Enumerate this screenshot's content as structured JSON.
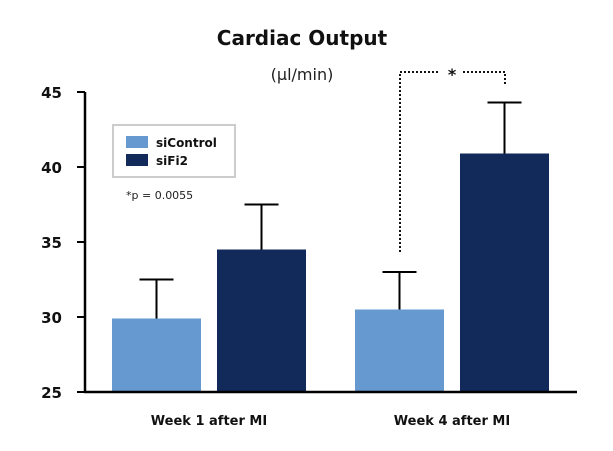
{
  "chart_data": {
    "type": "bar",
    "title": "Cardiac Output",
    "subtitle": "(μl/min)",
    "xlabel": "",
    "ylabel": "",
    "ylim": [
      25,
      45
    ],
    "yticks": [
      "25",
      "30",
      "35",
      "40",
      "45"
    ],
    "grid": false,
    "categories": [
      "Week 1 after MI",
      "Week 4 after MI"
    ],
    "series": [
      {
        "name": "siControl",
        "color": "#6699d0",
        "values": [
          29.9,
          30.5
        ],
        "error_upper": [
          32.5,
          33.0
        ]
      },
      {
        "name": "siFi2",
        "color": "#112a5a",
        "values": [
          34.5,
          40.9
        ],
        "error_upper": [
          37.5,
          44.3
        ]
      }
    ],
    "legend": {
      "placement": "top-left",
      "entries": [
        "siControl",
        "siFi2"
      ]
    },
    "annotations": {
      "pvalue": "*p = 0.0055",
      "significance_marker": "*"
    }
  }
}
